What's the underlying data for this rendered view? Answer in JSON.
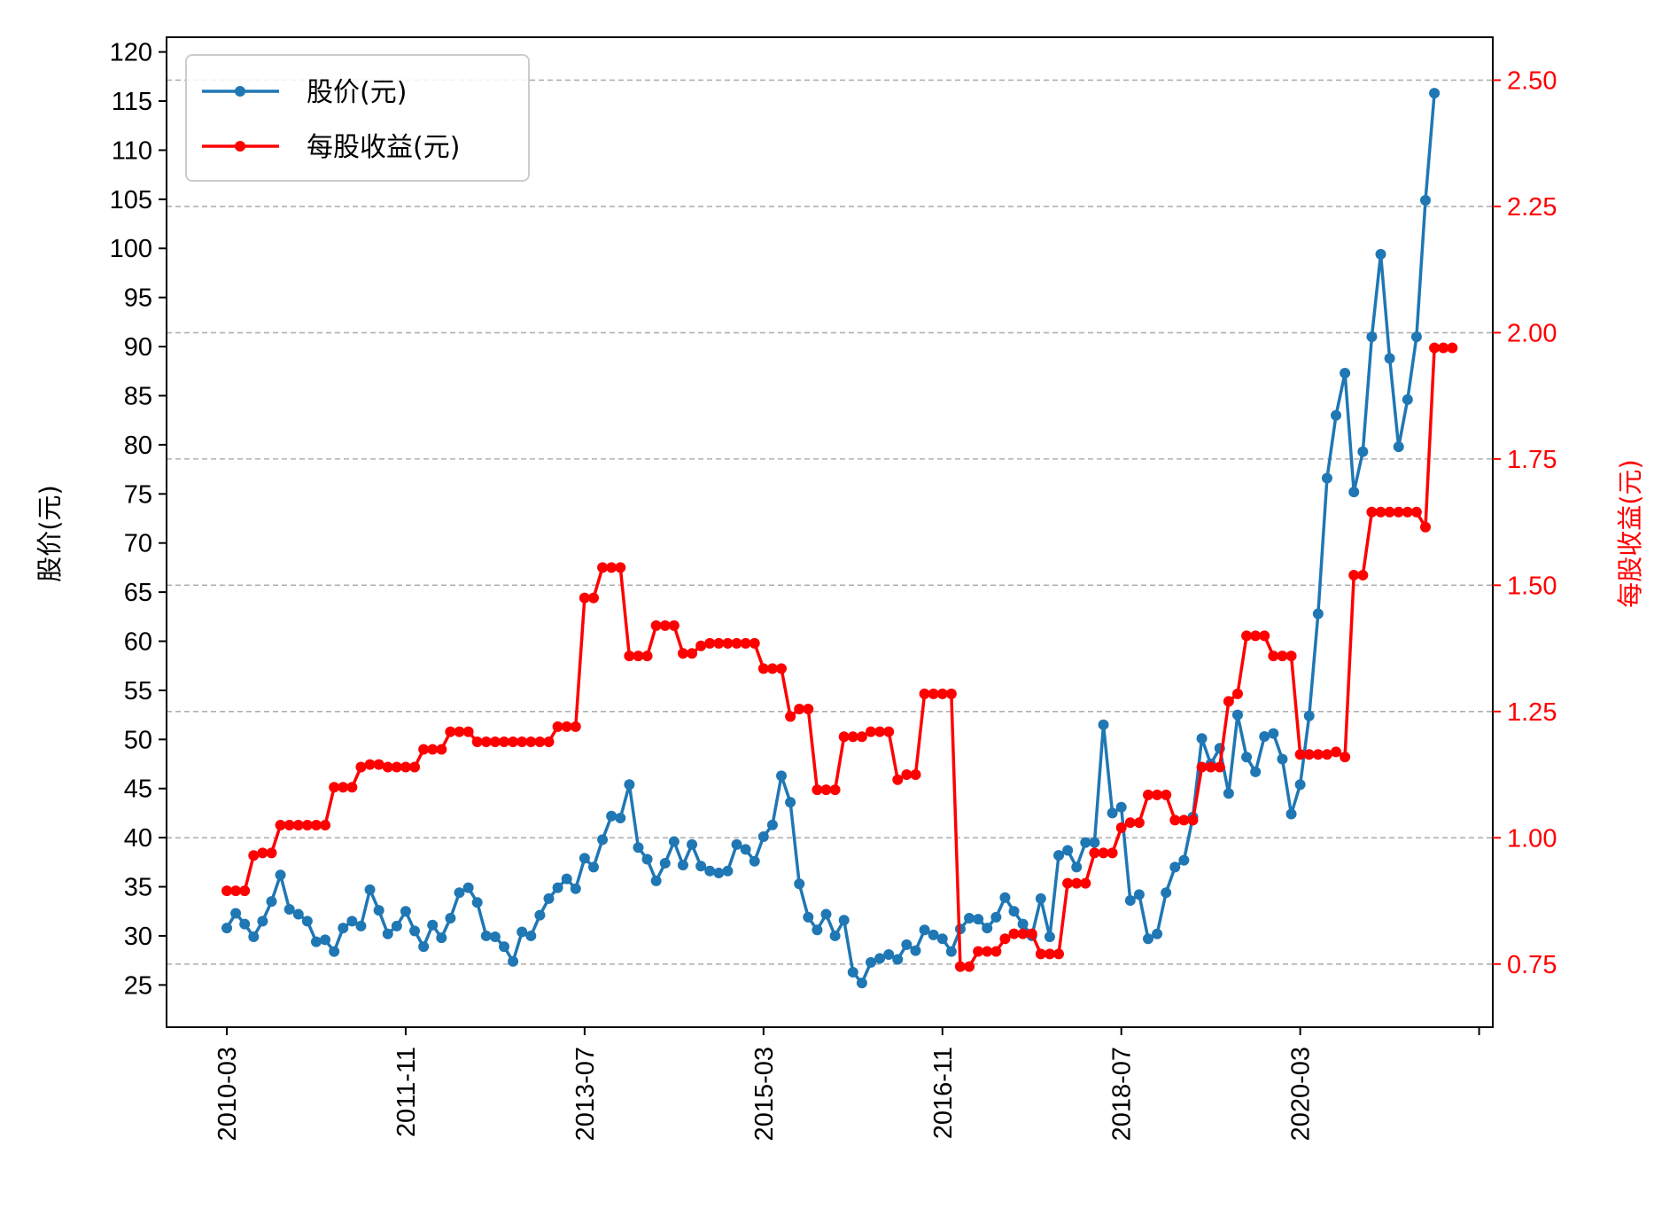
{
  "chart_data": {
    "type": "line",
    "dual_axis": true,
    "title": "",
    "xlabel": "",
    "ylabel_left": "股价(元)",
    "ylabel_right": "每股收益(元)",
    "ylim_left": [
      20.7,
      121.5
    ],
    "ylim_right": [
      0.625,
      2.585
    ],
    "left_ticks": [
      25,
      30,
      35,
      40,
      45,
      50,
      55,
      60,
      65,
      70,
      75,
      80,
      85,
      90,
      95,
      100,
      105,
      110,
      115,
      120
    ],
    "right_ticks": [
      "0.75",
      "1.00",
      "1.25",
      "1.50",
      "1.75",
      "2.00",
      "2.25",
      "2.50"
    ],
    "x_tick_labels": [
      "2010-03",
      "2011-11",
      "2013-07",
      "2015-03",
      "2016-11",
      "2018-07",
      "2020-03",
      ""
    ],
    "x_tick_index": [
      0,
      20,
      40,
      60,
      80,
      100,
      120,
      140
    ],
    "grid": "right-axis horizontal dashed",
    "legend_position": "top-left",
    "colors": {
      "price": "#1f77b4",
      "eps": "#ff0000",
      "grid": "#b0b0b0",
      "right_axis": "#ff0000"
    },
    "series": [
      {
        "name": "股价(元)",
        "axis": "left",
        "color": "#1f77b4",
        "values": [
          30.8,
          32.3,
          31.2,
          29.9,
          31.5,
          33.5,
          36.2,
          32.7,
          32.2,
          31.5,
          29.4,
          29.6,
          28.4,
          30.8,
          31.5,
          31.0,
          34.7,
          32.6,
          30.2,
          31.0,
          32.5,
          30.5,
          28.9,
          31.1,
          29.8,
          31.8,
          34.4,
          34.9,
          33.4,
          30.0,
          29.9,
          28.9,
          27.4,
          30.4,
          30.0,
          32.1,
          33.8,
          34.9,
          35.8,
          34.8,
          37.9,
          37.0,
          39.8,
          42.2,
          42.0,
          45.4,
          39.0,
          37.8,
          35.6,
          37.4,
          39.6,
          37.2,
          39.3,
          37.1,
          36.6,
          36.4,
          36.6,
          39.3,
          38.8,
          37.6,
          40.1,
          41.3,
          46.3,
          43.6,
          35.3,
          31.9,
          30.6,
          32.2,
          30.0,
          31.6,
          26.3,
          25.2,
          27.3,
          27.7,
          28.1,
          27.6,
          29.1,
          28.5,
          30.6,
          30.1,
          29.7,
          28.4,
          30.7,
          31.8,
          31.7,
          30.8,
          31.9,
          33.9,
          32.5,
          31.2,
          30.0,
          33.8,
          29.9,
          38.2,
          38.7,
          37.0,
          39.5,
          39.5,
          51.5,
          42.5,
          43.1,
          33.6,
          34.2,
          29.7,
          30.2,
          34.4,
          37.0,
          37.7,
          42.1,
          50.1,
          47.5,
          49.1,
          44.5,
          52.5,
          48.2,
          46.7,
          50.3,
          50.6,
          48.0,
          42.4,
          45.4,
          52.4,
          62.8,
          76.6,
          83.0,
          87.3,
          75.2,
          79.3,
          91.0,
          99.4,
          88.8,
          79.8,
          84.6,
          91.0,
          104.9,
          115.8
        ]
      },
      {
        "name": "每股收益(元)",
        "axis": "right",
        "color": "#ff0000",
        "values": [
          0.895,
          0.895,
          0.895,
          0.965,
          0.97,
          0.97,
          1.025,
          1.025,
          1.025,
          1.025,
          1.025,
          1.025,
          1.1,
          1.1,
          1.1,
          1.14,
          1.145,
          1.145,
          1.14,
          1.14,
          1.14,
          1.14,
          1.175,
          1.175,
          1.175,
          1.21,
          1.21,
          1.21,
          1.19,
          1.19,
          1.19,
          1.19,
          1.19,
          1.19,
          1.19,
          1.19,
          1.19,
          1.22,
          1.22,
          1.22,
          1.475,
          1.475,
          1.535,
          1.535,
          1.535,
          1.36,
          1.36,
          1.36,
          1.42,
          1.42,
          1.42,
          1.365,
          1.365,
          1.38,
          1.385,
          1.385,
          1.385,
          1.385,
          1.385,
          1.385,
          1.335,
          1.335,
          1.335,
          1.24,
          1.255,
          1.255,
          1.095,
          1.095,
          1.095,
          1.2,
          1.2,
          1.2,
          1.21,
          1.21,
          1.21,
          1.115,
          1.125,
          1.125,
          1.285,
          1.285,
          1.285,
          1.285,
          0.745,
          0.745,
          0.775,
          0.775,
          0.775,
          0.8,
          0.81,
          0.81,
          0.81,
          0.77,
          0.77,
          0.77,
          0.91,
          0.91,
          0.91,
          0.97,
          0.97,
          0.97,
          1.02,
          1.03,
          1.03,
          1.085,
          1.085,
          1.085,
          1.035,
          1.035,
          1.035,
          1.14,
          1.14,
          1.14,
          1.27,
          1.285,
          1.4,
          1.4,
          1.4,
          1.36,
          1.36,
          1.36,
          1.165,
          1.165,
          1.165,
          1.165,
          1.17,
          1.16,
          1.52,
          1.52,
          1.645,
          1.645,
          1.645,
          1.645,
          1.645,
          1.645,
          1.615,
          1.97,
          1.97,
          1.97
        ]
      }
    ]
  }
}
